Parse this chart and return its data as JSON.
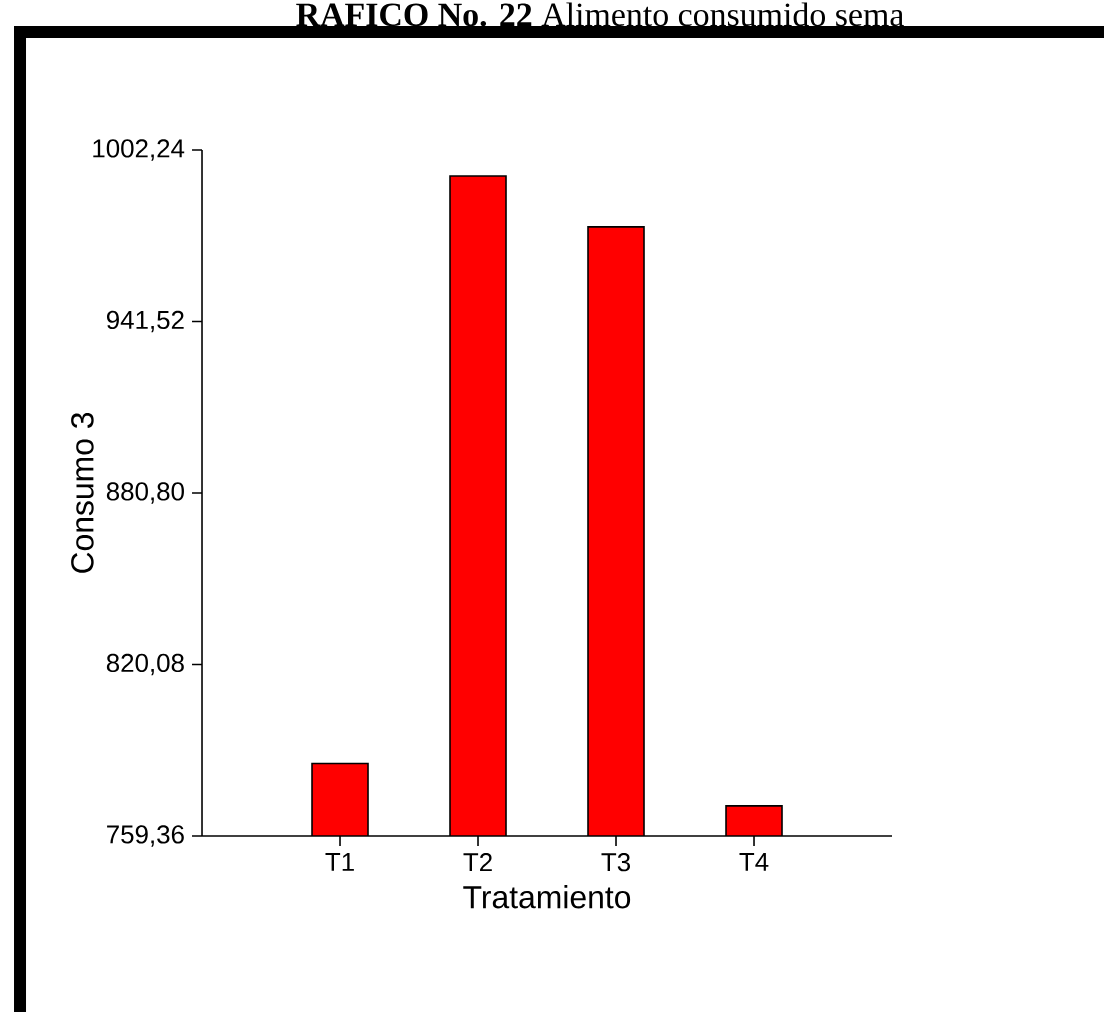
{
  "chart_data": {
    "type": "bar",
    "title": "**RAFICO No. 22** Alimento consumido sema",
    "xlabel": "Tratamiento",
    "ylabel": "Consumo 3",
    "categories": [
      "T1",
      "T2",
      "T3",
      "T4"
    ],
    "values": [
      785,
      993,
      975,
      770
    ],
    "color": "#ff0000",
    "ylim": [
      759.36,
      1002.24
    ],
    "yticks": [
      {
        "value": 759.36,
        "label": "759,36"
      },
      {
        "value": 820.08,
        "label": "820,08"
      },
      {
        "value": 880.8,
        "label": "880,80"
      },
      {
        "value": 941.52,
        "label": "941,52"
      },
      {
        "value": 1002.24,
        "label": "1002,24"
      }
    ]
  }
}
